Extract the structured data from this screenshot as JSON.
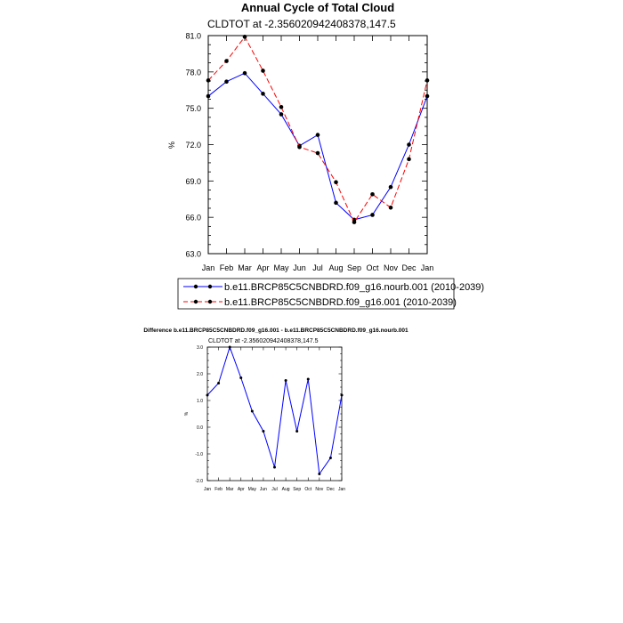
{
  "chart_data": [
    {
      "type": "line",
      "title": "Annual Cycle of Total Cloud",
      "subtitle": "CLDTOT at -2.356020942408378,147.5",
      "xlabel": "",
      "ylabel": "%",
      "categories": [
        "Jan",
        "Feb",
        "Mar",
        "Apr",
        "May",
        "Jun",
        "Jul",
        "Aug",
        "Sep",
        "Oct",
        "Nov",
        "Dec",
        "Jan"
      ],
      "ylim": [
        63.0,
        81.0
      ],
      "yticks": [
        "63.0",
        "66.0",
        "69.0",
        "72.0",
        "75.0",
        "78.0",
        "81.0"
      ],
      "legend_position": "bottom",
      "series": [
        {
          "name": "b.e11.BRCP85C5CNBDRD.f09_g16.nourb.001 (2010-2039)",
          "color": "#0000ff",
          "style": "solid",
          "values": [
            76.0,
            77.2,
            77.9,
            76.2,
            74.5,
            71.9,
            72.8,
            67.2,
            65.8,
            66.2,
            68.5,
            72.0,
            76.0
          ]
        },
        {
          "name": "b.e11.BRCP85C5CNBDRD.f09_g16.001 (2010-2039)",
          "color": "#ff0000",
          "style": "dashed",
          "values": [
            77.3,
            78.9,
            80.9,
            78.1,
            75.1,
            71.8,
            71.3,
            68.9,
            65.6,
            67.9,
            66.8,
            70.8,
            77.3
          ]
        }
      ]
    },
    {
      "type": "line",
      "title": "Difference b.e11.BRCP85C5CNBDRD.f09_g16.001 - b.e11.BRCP85C5CNBDRD.f09_g16.nourb.001",
      "subtitle": "CLDTOT at -2.356020942408378,147.5",
      "xlabel": "",
      "ylabel": "%",
      "categories": [
        "Jan",
        "Feb",
        "Mar",
        "Apr",
        "May",
        "Jun",
        "Jul",
        "Aug",
        "Sep",
        "Oct",
        "Nov",
        "Dec",
        "Jan"
      ],
      "ylim": [
        -2.0,
        3.0
      ],
      "yticks": [
        "-2.0",
        "-1.0",
        "0.0",
        "1.0",
        "2.0",
        "3.0"
      ],
      "series": [
        {
          "color": "#0000ff",
          "values": [
            1.2,
            1.65,
            3.0,
            1.85,
            0.6,
            -0.15,
            -1.5,
            1.75,
            -0.15,
            1.8,
            -1.75,
            -1.15,
            1.2
          ]
        }
      ]
    }
  ]
}
